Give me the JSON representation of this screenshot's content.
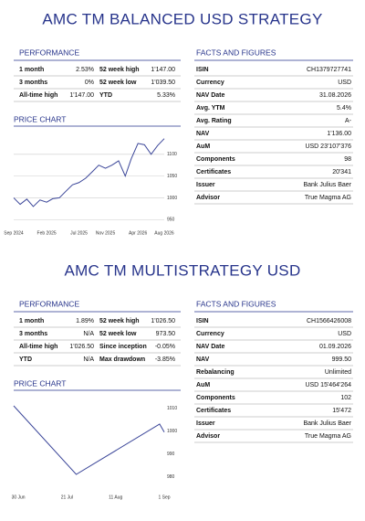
{
  "sections": [
    {
      "title": "AMC TM BALANCED USD STRATEGY",
      "performance": {
        "title": "PERFORMANCE",
        "rows": [
          [
            "1 month",
            "2.53%",
            "52 week high",
            "1'147.00"
          ],
          [
            "3 months",
            "0%",
            "52 week low",
            "1'039.50"
          ],
          [
            "All-time high",
            "1'147.00",
            "YTD",
            "5.33%"
          ]
        ]
      },
      "facts": {
        "title": "FACTS AND FIGURES",
        "rows": [
          [
            "ISIN",
            "CH1379727741"
          ],
          [
            "Currency",
            "USD"
          ],
          [
            "NAV Date",
            "31.08.2026"
          ],
          [
            "Avg. YTM",
            "5.4%"
          ],
          [
            "Avg. Rating",
            "A-"
          ],
          [
            "NAV",
            "1'136.00"
          ],
          [
            "AuM",
            "USD 23'107'376"
          ],
          [
            "Components",
            "98"
          ],
          [
            "Certificates",
            "20'341"
          ],
          [
            "Issuer",
            "Bank Julius Baer"
          ],
          [
            "Advisor",
            "True Magma AG"
          ]
        ]
      },
      "price_chart": {
        "title": "PRICE CHART",
        "type": "line",
        "color": "#3b4699",
        "grid": true,
        "x": [
          "Sep 2024",
          "Oct 2024",
          "Nov 2024",
          "Dec 2024",
          "Jan 2025",
          "Feb 2025",
          "Mar 2025",
          "Apr 2025",
          "May 2025",
          "Jun 2025",
          "Jul 2025",
          "Aug 2025",
          "Sep 2025",
          "Oct 2025",
          "Nov 2025",
          "Dec 2025",
          "Jan 2026",
          "Feb 2026",
          "Mar 2026",
          "Apr 2026",
          "May 2026",
          "Jun 2026",
          "Jul 2026",
          "Aug 2026"
        ],
        "values": [
          1000,
          985,
          997,
          980,
          995,
          990,
          998,
          1000,
          1015,
          1030,
          1035,
          1045,
          1060,
          1075,
          1068,
          1075,
          1085,
          1050,
          1090,
          1125,
          1122,
          1100,
          1120,
          1136
        ],
        "xlim": [
          "Sep 2024",
          "Aug 2026"
        ],
        "xticks": [
          "Sep 2024",
          "Feb 2025",
          "Jul 2025",
          "Nov 2025",
          "Apr 2026",
          "Aug 2026"
        ],
        "ylim": [
          940,
          1150
        ],
        "yticks": [
          950,
          1000,
          1050,
          1100
        ]
      }
    },
    {
      "title": "AMC TM MULTISTRATEGY USD",
      "performance": {
        "title": "PERFORMANCE",
        "rows": [
          [
            "1 month",
            "1.89%",
            "52 week high",
            "1'026.50"
          ],
          [
            "3 months",
            "N/A",
            "52 week low",
            "973.50"
          ],
          [
            "All-time high",
            "1'026.50",
            "Since inception",
            "-0.05%"
          ],
          [
            "YTD",
            "N/A",
            "Max drawdown",
            "-3.85%"
          ]
        ]
      },
      "facts": {
        "title": "FACTS AND FIGURES",
        "rows": [
          [
            "ISIN",
            "CH1566426008"
          ],
          [
            "Currency",
            "USD"
          ],
          [
            "NAV Date",
            "01.09.2026"
          ],
          [
            "NAV",
            "999.50"
          ],
          [
            "Rebalancing",
            "Unlimited"
          ],
          [
            "AuM",
            "USD 15'464'264"
          ],
          [
            "Components",
            "102"
          ],
          [
            "Certificates",
            "15'472"
          ],
          [
            "Issuer",
            "Bank Julius Baer"
          ],
          [
            "Advisor",
            "True Magma AG"
          ]
        ]
      },
      "price_chart": {
        "title": "PRICE CHART",
        "type": "line",
        "color": "#3b4699",
        "grid": false,
        "x": [
          "28 Jun",
          "25 Jul",
          "30 Aug",
          "1 Sep"
        ],
        "values": [
          1011,
          981,
          1003,
          999.5
        ],
        "xlim": [
          "28 Jun",
          "1 Sep"
        ],
        "xticks": [
          "30 Jun",
          "21 Jul",
          "11 Aug",
          "1 Sep"
        ],
        "ylim": [
          975,
          1015
        ],
        "yticks": [
          980,
          990,
          1000,
          1010
        ]
      }
    }
  ]
}
